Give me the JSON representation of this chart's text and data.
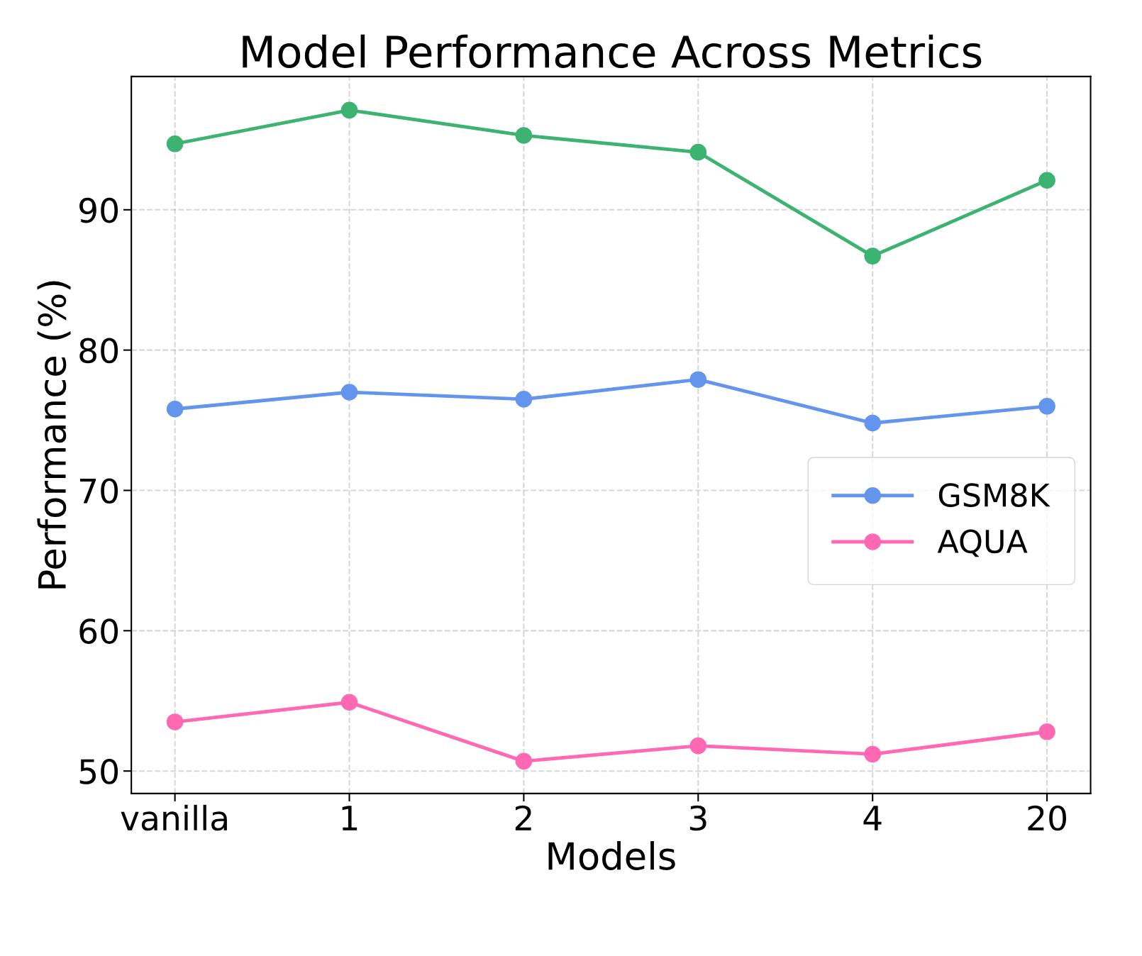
{
  "chart_data": {
    "type": "line",
    "title": "Model Performance Across Metrics",
    "xlabel": "Models",
    "ylabel": "Performance (%)",
    "categories": [
      "vanilla",
      "1",
      "2",
      "3",
      "4",
      "20"
    ],
    "series": [
      {
        "name": "GSM8K",
        "color": "#6495ed",
        "values": [
          75.8,
          77.0,
          76.5,
          77.9,
          74.8,
          76.0
        ]
      },
      {
        "name": "AQUA",
        "color": "#ff69b4",
        "values": [
          53.5,
          54.9,
          50.7,
          51.8,
          51.2,
          52.8
        ]
      },
      {
        "color": "#3cb371",
        "values": [
          94.7,
          97.1,
          95.3,
          94.1,
          86.7,
          92.1
        ]
      }
    ],
    "ylim": [
      48.4,
      99.5
    ],
    "yticks": [
      50,
      60,
      70,
      80,
      90
    ],
    "grid": true,
    "legend": "right",
    "marker": "circle",
    "line_style": "solid"
  }
}
